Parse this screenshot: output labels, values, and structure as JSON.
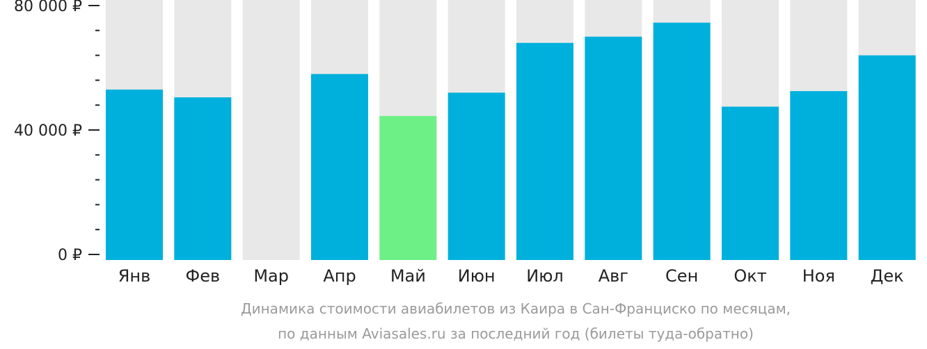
{
  "chart_data": {
    "type": "bar",
    "categories": [
      "Янв",
      "Фев",
      "Мар",
      "Апр",
      "Май",
      "Июн",
      "Июл",
      "Авг",
      "Сен",
      "Окт",
      "Ноя",
      "Дек"
    ],
    "values": [
      53000,
      50500,
      null,
      58000,
      44500,
      52000,
      68000,
      70000,
      74500,
      47500,
      52500,
      64000
    ],
    "highlight_index": 4,
    "ylim": [
      0,
      82000
    ],
    "y_ticks": [
      0,
      40000,
      80000
    ],
    "y_tick_labels": [
      "0 ₽",
      "40 000 ₽",
      "80 000 ₽"
    ],
    "minor_ticks_per_major": 5,
    "grid": false,
    "legend": "none",
    "title": "",
    "xlabel": "",
    "ylabel": "",
    "colors": {
      "bar": "#00b0dc",
      "highlight": "#6df085",
      "background_bar": "#e8e8e8",
      "axis": "#222222",
      "caption": "#9a9a9a"
    }
  },
  "caption": {
    "line1": "Динамика стоимости авиабилетов из Каира в Сан-Франциско по месяцам,",
    "line2": "по данным Aviasales.ru за последний год (билеты туда-обратно)"
  }
}
